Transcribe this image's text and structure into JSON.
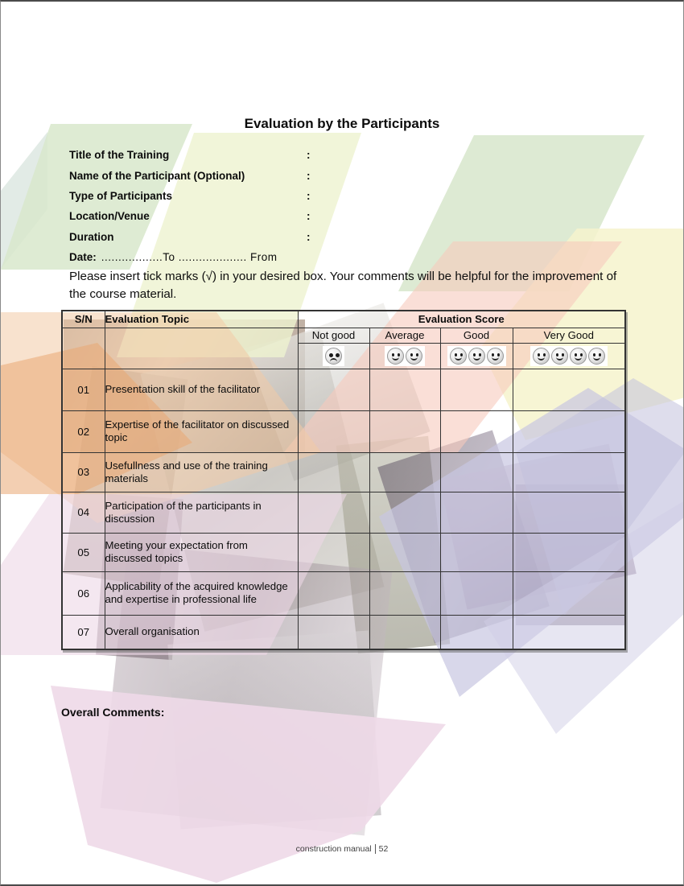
{
  "page": {
    "title": "Evaluation by the Participants",
    "overall_comments_label": "Overall Comments:",
    "footer": {
      "text": "construction manual",
      "page_number": "52"
    }
  },
  "fields": [
    {
      "label": "Title of the Training",
      "separator": ":",
      "value": ""
    },
    {
      "label": "Name of the Participant (Optional)",
      "separator": ":",
      "value": ""
    },
    {
      "label": "Type of Participants",
      "separator": ":",
      "value": ""
    },
    {
      "label": "Location/Venue",
      "separator": ":",
      "value": ""
    },
    {
      "label": "Duration",
      "separator": ":",
      "value": ""
    }
  ],
  "date_line": {
    "label": "Date:",
    "value": "..................To  .................... From"
  },
  "instruction": "Please insert tick marks (√) in your desired box. Your comments will be helpful for the improvement of the course material.",
  "table": {
    "headers": {
      "sn": "S/N",
      "topic": "Evaluation Topic",
      "score": "Evaluation Score"
    },
    "score_columns": [
      {
        "label": "Not good",
        "smileys": 1,
        "mood": "sad"
      },
      {
        "label": "Average",
        "smileys": 2,
        "mood": "happy"
      },
      {
        "label": "Good",
        "smileys": 3,
        "mood": "happy"
      },
      {
        "label": "Very Good",
        "smileys": 4,
        "mood": "happy"
      }
    ],
    "rows": [
      {
        "sn": "01",
        "topic": "Presentation skill of the facilitator"
      },
      {
        "sn": "02",
        "topic": "Expertise of the facilitator on discussed topic"
      },
      {
        "sn": "03",
        "topic": "Usefullness and use of the training materials"
      },
      {
        "sn": "04",
        "topic": "Participation of the participants in discussion"
      },
      {
        "sn": "05",
        "topic": "Meeting your expectation from discussed topics"
      },
      {
        "sn": "06",
        "topic": "Applicability of the acquired knowledge and expertise in professional life"
      },
      {
        "sn": "07",
        "topic": "Overall organisation"
      }
    ]
  },
  "colors": {
    "score_header_bg": "#949494",
    "table_border": "#333333",
    "very_good_cell_bg": "#f6f3d0",
    "footer_text": "#3f3f3f"
  }
}
